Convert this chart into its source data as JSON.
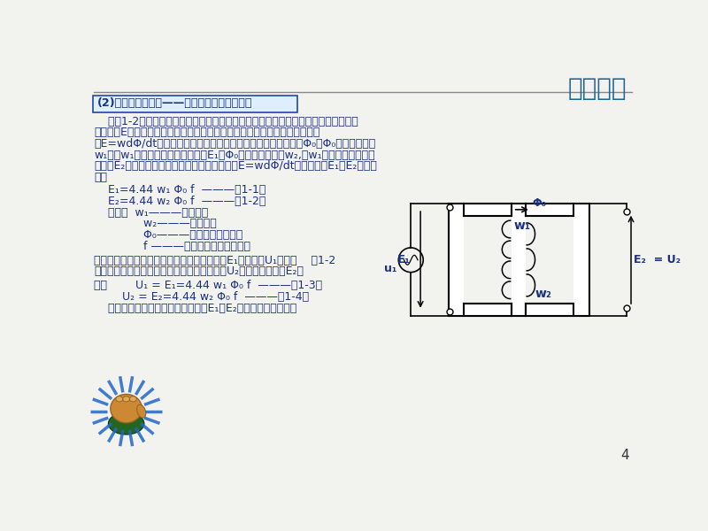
{
  "bg_color": "#f2f2ee",
  "title_text": "晶石电子",
  "title_color": "#1a6699",
  "title_fontsize": 20,
  "header_line_color": "#888888",
  "blue_color": "#2244aa",
  "dark_blue": "#1a3080",
  "box_title": "(2)第二个物理过程——磁动生电（空载状态）",
  "box_bg": "#ddeeff",
  "box_border": "#2244aa",
  "page_num": "4",
  "lines_p1": [
    "    如图1-2所示，按照电磁感应定律，当线圈中的磁通发生变化，会在线圈两端产生感",
    "应电动势E，感应电动势的大小与线圈的匝数成正比，与磁通的变化率成正比",
    "（E=wdΦ/dt）。我们知道在第一过程中铁芯里产生了交变磁通Φ₀，Φ₀交链初级线圈",
    "w₁，在w₁的的两端产生自感电动势E₁。Φ₀又交链次级线圈w₂,在w₁的的两端产生互感",
    "电动势E₂。当磁通为正弦波时，由电磁感应公式E=wdΦ/dt可以推导出E₁、E₂的大小",
    "为："
  ],
  "equations": [
    "    E₁=4.44 w₁ Φ₀ f  ———（1-1）",
    "    E₂=4.44 w₂ Φ₀ f  ———（1-2）",
    "    式中：  w₁———初级匝数",
    "              w₂———次级匝数",
    "              Φ₀———交变磁通（韦伯）",
    "              f ———磁通变化频率（赫兹）"
  ],
  "lines_p2": [
    "在理想状态下，初次级电阻为零，自感电动势E₁与外电压U₁之间的    图1-2",
    "关系为：大小相等，方向相反；次级输出电压U₂等于互感电动势E₂。"
  ],
  "lines_p3": [
    "即：        U₁ = E₁=4.44 w₁ Φ₀ f  ———（1-3）",
    "        U₂ = E₂=4.44 w₂ Φ₀ f  ———（1-4）",
    "    这就是磁通变化而产生感应电动势E₁、E₂，即磁动生电过程。"
  ]
}
